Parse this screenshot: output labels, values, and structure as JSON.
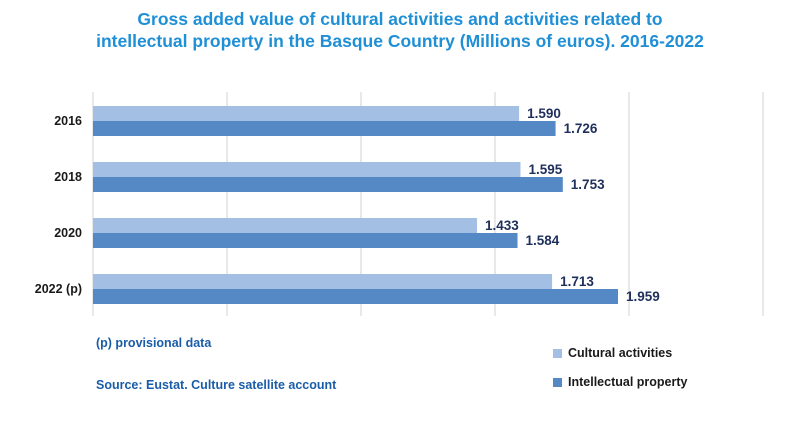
{
  "chart_data": {
    "type": "bar",
    "orientation": "horizontal",
    "title": "Gross added value of cultural activities and activities related to intellectual property in the Basque Country (Millions of euros).  2016-2022",
    "title_lines": [
      "Gross added value of cultural activities and activities related to",
      "intellectual property in the Basque Country (Millions of euros).  2016-2022"
    ],
    "categories": [
      "2016",
      "2018",
      "2020",
      "2022 (p)"
    ],
    "series": [
      {
        "name": "Cultural activities",
        "values": [
          1590,
          1595,
          1433,
          1713
        ],
        "labels": [
          "1.590",
          "1.595",
          "1.433",
          "1.713"
        ],
        "color": "#a3bfe3"
      },
      {
        "name": "Intellectual property",
        "values": [
          1726,
          1753,
          1584,
          1959
        ],
        "labels": [
          "1.726",
          "1.753",
          "1.584",
          "1.959"
        ],
        "color": "#5489c5"
      }
    ],
    "xlim": [
      0,
      2500
    ],
    "gridlines": true,
    "legend_position": "bottom-right"
  },
  "notes": {
    "provisional": "(p) provisional data",
    "source": "Source: Eustat. Culture satellite account"
  },
  "colors": {
    "title": "#1f8fd6",
    "notes": "#1a5ca8",
    "grid": "#d0d0d0",
    "labels": "#1f2f5c"
  }
}
